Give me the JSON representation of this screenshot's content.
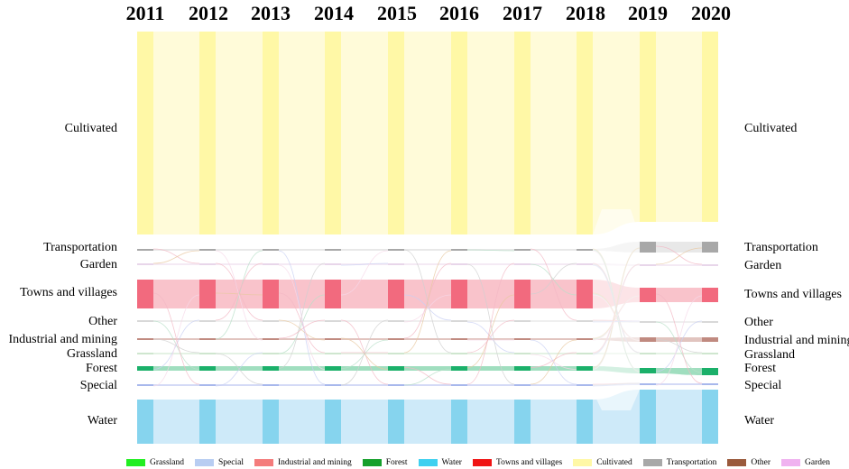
{
  "years": [
    "2011",
    "2012",
    "2013",
    "2014",
    "2015",
    "2016",
    "2017",
    "2018",
    "2019",
    "2020"
  ],
  "left_labels": [
    "Cultivated",
    "Transportation",
    "Garden",
    "Towns and villages",
    "Other",
    "Industrial and mining",
    "Grassland",
    "Forest",
    "Special",
    "Water"
  ],
  "right_labels": [
    "Cultivated",
    "Transportation",
    "Garden",
    "Towns and villages",
    "Other",
    "Industrial and mining",
    "Grassland",
    "Forest",
    "Special",
    "Water"
  ],
  "legend": [
    {
      "label": "Grassland",
      "color": "#22ee22"
    },
    {
      "label": "Special",
      "color": "#b8cdf2"
    },
    {
      "label": "Industrial and mining",
      "color": "#f47c7c"
    },
    {
      "label": "Forest",
      "color": "#16a02c"
    },
    {
      "label": "Water",
      "color": "#3fd0f0"
    },
    {
      "label": "Towns and villages",
      "color": "#f01414"
    },
    {
      "label": "Cultivated",
      "color": "#fff8a6"
    },
    {
      "label": "Transportation",
      "color": "#a8a8a8"
    },
    {
      "label": "Other",
      "color": "#9a5a3c"
    },
    {
      "label": "Garden",
      "color": "#f0b2f0"
    }
  ],
  "colors": {
    "node": {
      "Cultivated": "#fff8a6",
      "Transportation": "#a8a8a8",
      "Garden": "#e8d6ea",
      "Towns and villages": "#f26a7e",
      "Other": "#d8d8d8",
      "Industrial and mining": "#c08a80",
      "Grassland": "#cfe6cf",
      "Forest": "#1bb06a",
      "Special": "#a8b8ec",
      "Water": "#86d4ee"
    },
    "flow": {
      "Cultivated": "#fffad2",
      "Transportation": "#e4e4e4",
      "Garden": "#f2e6f2",
      "Towns and villages": "#f8b8c2",
      "Other": "#ececec",
      "Industrial and mining": "#dcbab4",
      "Grassland": "#dff0df",
      "Forest": "#8fd8b4",
      "Special": "#ccd4f4",
      "Water": "#c6e6f8"
    }
  }
}
